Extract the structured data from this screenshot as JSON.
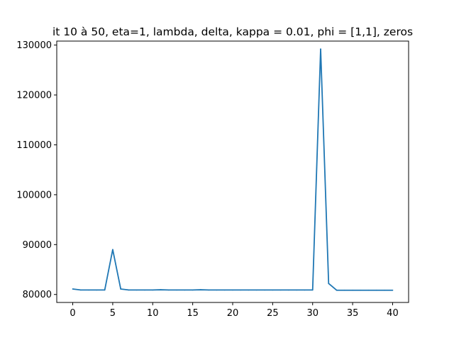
{
  "chart_data": {
    "type": "line",
    "title": "it 10 à 50, eta=1, lambda, delta, kappa  = 0.01, phi = [1,1], zeros",
    "xlabel": "",
    "ylabel": "",
    "xlim": [
      -2,
      42
    ],
    "ylim": [
      78400,
      130800
    ],
    "x_ticks": [
      0,
      5,
      10,
      15,
      20,
      25,
      30,
      35,
      40
    ],
    "y_ticks": [
      80000,
      90000,
      100000,
      110000,
      120000,
      130000
    ],
    "grid": false,
    "legend": "none",
    "series": [
      {
        "color": "#1f77b4",
        "x": [
          0,
          1,
          2,
          3,
          4,
          5,
          6,
          7,
          8,
          9,
          10,
          11,
          12,
          13,
          14,
          15,
          16,
          17,
          18,
          19,
          20,
          21,
          22,
          23,
          24,
          25,
          26,
          27,
          28,
          29,
          30,
          31,
          32,
          33,
          34,
          35,
          36,
          37,
          38,
          39,
          40
        ],
        "values": [
          81100,
          80900,
          80900,
          80900,
          80900,
          89000,
          81100,
          80900,
          80900,
          80900,
          80900,
          80950,
          80900,
          80900,
          80900,
          80900,
          80950,
          80900,
          80900,
          80900,
          80900,
          80900,
          80900,
          80900,
          80900,
          80900,
          80900,
          80900,
          80900,
          80900,
          80900,
          129200,
          82200,
          80850,
          80850,
          80850,
          80850,
          80850,
          80850,
          80850,
          80850
        ]
      }
    ]
  }
}
